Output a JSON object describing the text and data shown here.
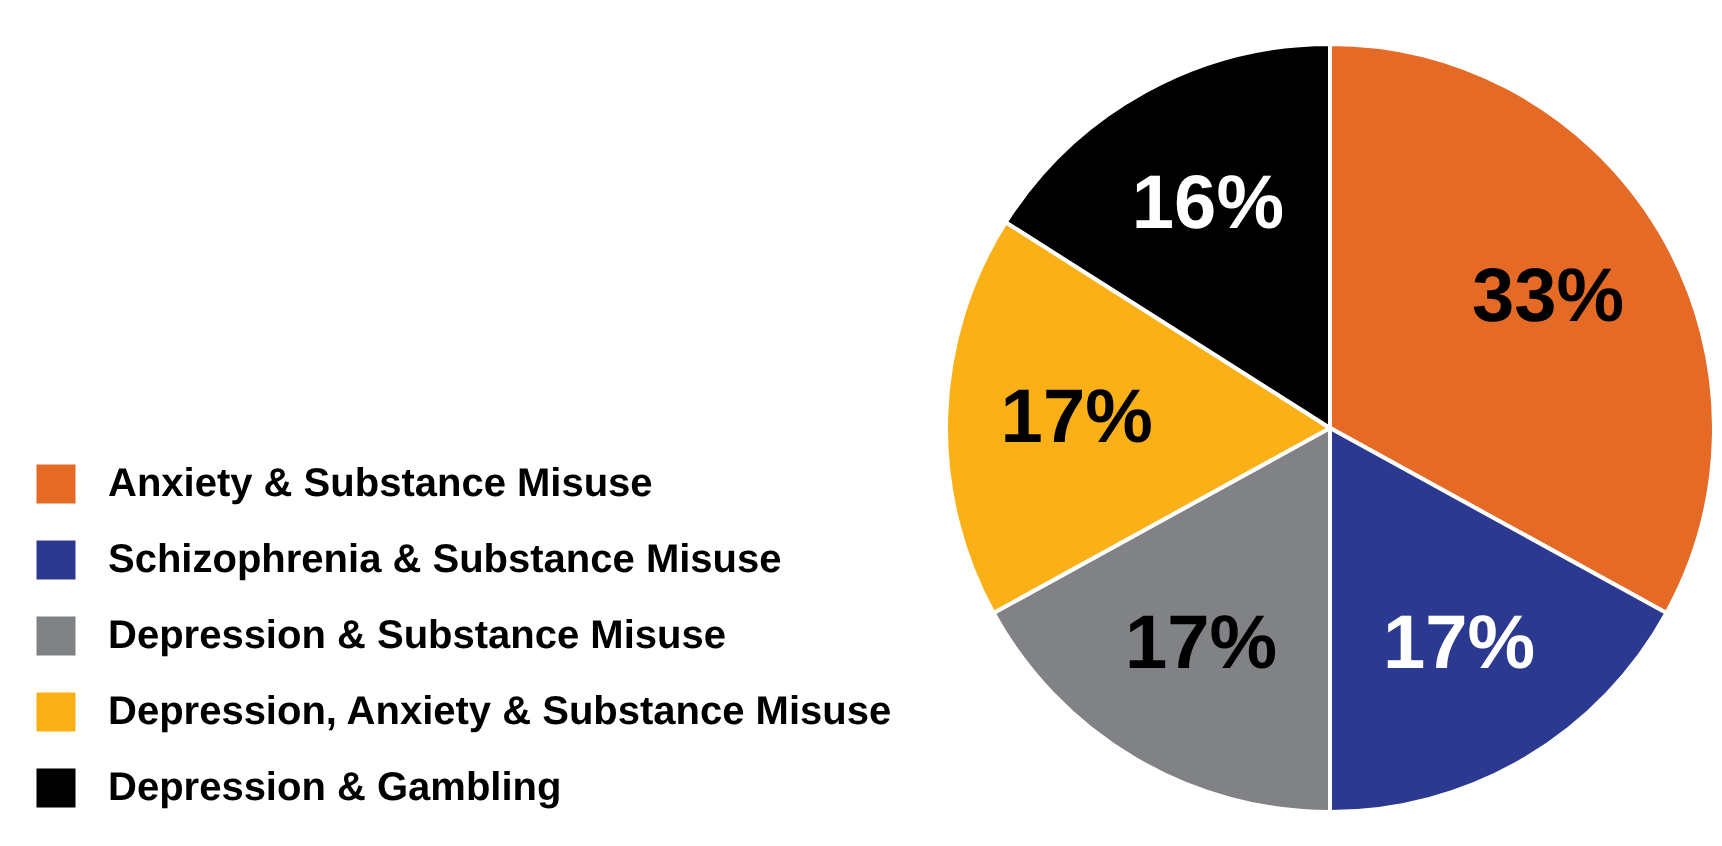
{
  "chart_data": {
    "type": "pie",
    "categories": [
      "Anxiety & Substance Misuse",
      "Schizophrenia & Substance Misuse",
      "Depression & Substance Misuse",
      "Depression, Anxiety & Substance Misuse",
      "Depression & Gambling"
    ],
    "values": [
      33,
      17,
      17,
      17,
      16
    ],
    "value_labels": [
      "33%",
      "17%",
      "17%",
      "17%",
      "16%"
    ],
    "colors": [
      "#e56a26",
      "#2b3990",
      "#808285",
      "#fbb017",
      "#000000"
    ],
    "legend": "bottom left"
  }
}
